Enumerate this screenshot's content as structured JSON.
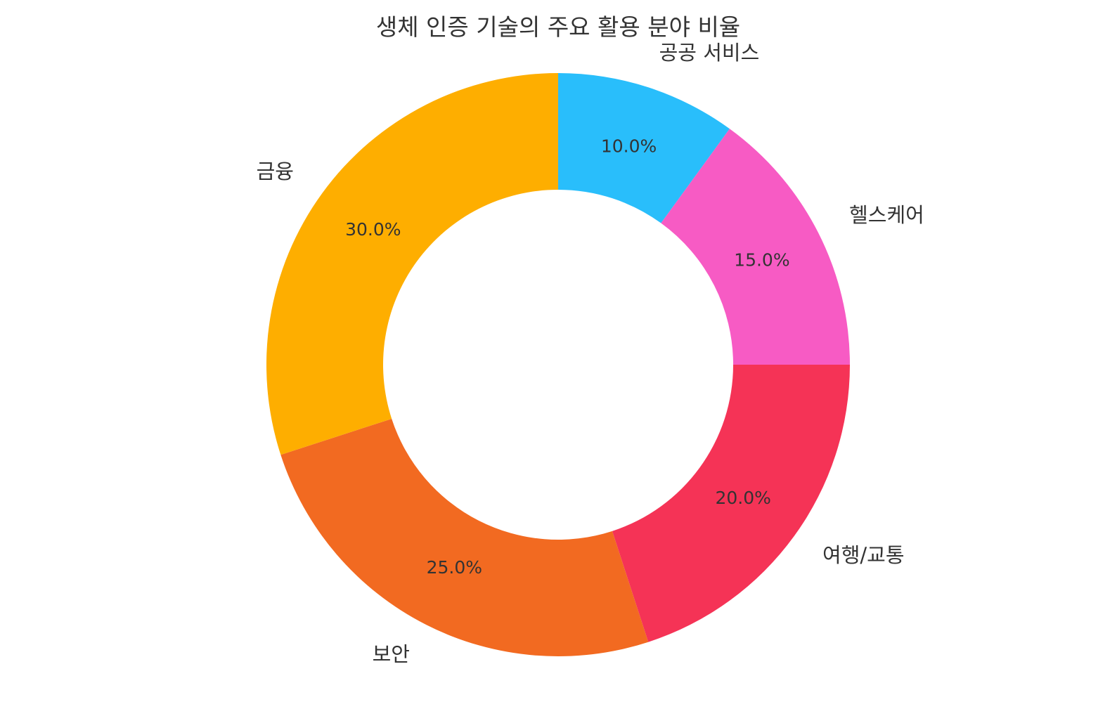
{
  "chart_data": {
    "type": "pie",
    "style": "donut",
    "title": "생체 인증 기술의 주요 활용 분야 비율",
    "start": "top",
    "direction": "clockwise",
    "slices": [
      {
        "label": "공공 서비스",
        "value": 10.0,
        "pct_label": "10.0%",
        "color": "#29BEFB"
      },
      {
        "label": "헬스케어",
        "value": 15.0,
        "pct_label": "15.0%",
        "color": "#F75BC4"
      },
      {
        "label": "여행/교통",
        "value": 20.0,
        "pct_label": "20.0%",
        "color": "#F53356"
      },
      {
        "label": "보안",
        "value": 25.0,
        "pct_label": "25.0%",
        "color": "#F26A21"
      },
      {
        "label": "금융",
        "value": 30.0,
        "pct_label": "30.0%",
        "color": "#FEAE00"
      }
    ]
  }
}
